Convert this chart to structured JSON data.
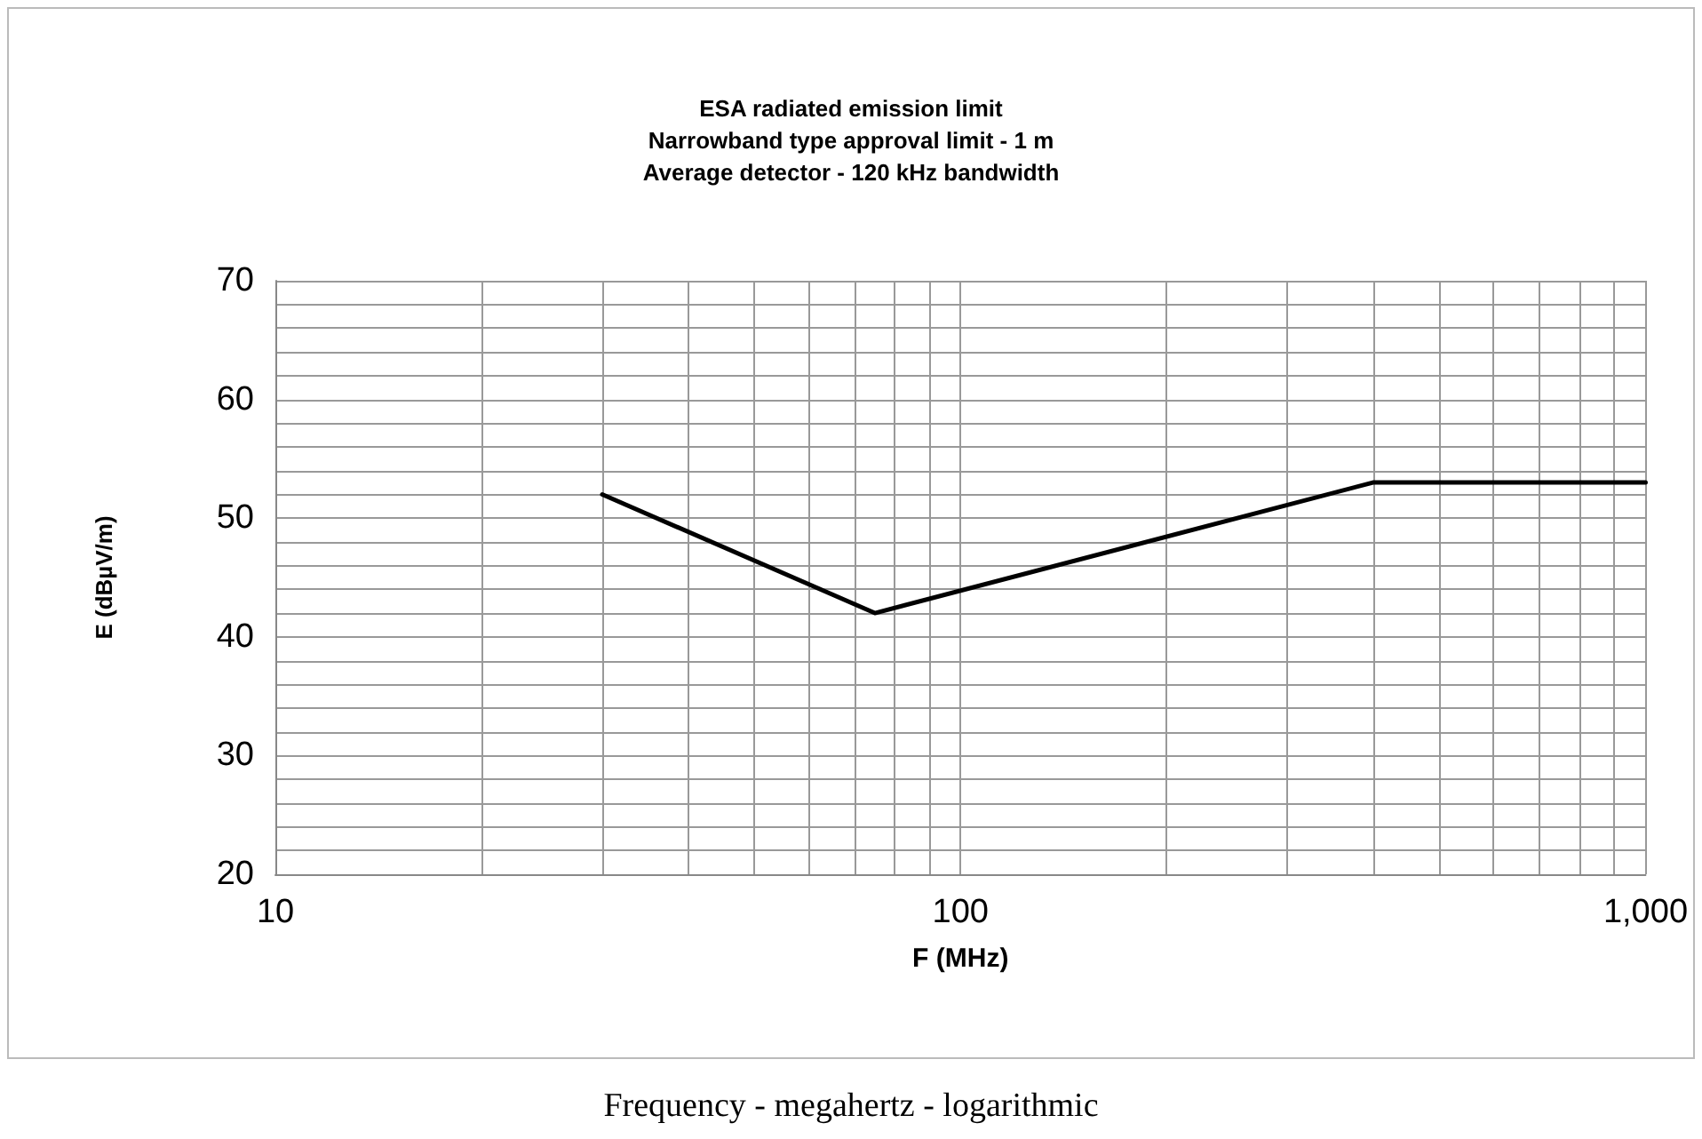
{
  "chart_data": {
    "type": "line",
    "title": "ESA radiated emission limit\nNarrowband type approval limit - 1 m\nAverage detector - 120 kHz bandwidth",
    "xlabel": "F (MHz)",
    "ylabel": "E (dBµV/m)",
    "annotations": [
      "Frequency - megahertz - logarithmic"
    ],
    "x": [
      30,
      75,
      400,
      1000
    ],
    "series": [
      {
        "color": "#000000",
        "values": [
          52,
          42,
          53,
          53
        ]
      }
    ],
    "log": "x",
    "grid": true,
    "marker": "none",
    "line_style": "solid",
    "xlim": [
      10,
      1000
    ],
    "xticks": [
      10,
      {
        "value": 20,
        "label": null
      },
      {
        "value": 30,
        "label": null
      },
      {
        "value": 40,
        "label": null
      },
      {
        "value": 50,
        "label": null
      },
      {
        "value": 60,
        "label": null
      },
      {
        "value": 70,
        "label": null
      },
      {
        "value": 80,
        "label": null
      },
      {
        "value": 90,
        "label": null
      },
      100,
      {
        "value": 200,
        "label": null
      },
      {
        "value": 300,
        "label": null
      },
      {
        "value": 400,
        "label": null
      },
      {
        "value": 500,
        "label": null
      },
      {
        "value": 600,
        "label": null
      },
      {
        "value": 700,
        "label": null
      },
      {
        "value": 800,
        "label": null
      },
      {
        "value": 900,
        "label": null
      },
      {
        "value": 1000,
        "label": "1,000"
      }
    ],
    "ylim": [
      20,
      70
    ],
    "yticks": [
      20,
      {
        "value": 22,
        "label": null
      },
      {
        "value": 24,
        "label": null
      },
      {
        "value": 26,
        "label": null
      },
      {
        "value": 28,
        "label": null
      },
      30,
      {
        "value": 32,
        "label": null
      },
      {
        "value": 34,
        "label": null
      },
      {
        "value": 36,
        "label": null
      },
      {
        "value": 38,
        "label": null
      },
      40,
      {
        "value": 42,
        "label": null
      },
      {
        "value": 44,
        "label": null
      },
      {
        "value": 46,
        "label": null
      },
      {
        "value": 48,
        "label": null
      },
      50,
      {
        "value": 52,
        "label": null
      },
      {
        "value": 54,
        "label": null
      },
      {
        "value": 56,
        "label": null
      },
      {
        "value": 58,
        "label": null
      },
      60,
      {
        "value": 62,
        "label": null
      },
      {
        "value": 64,
        "label": null
      },
      {
        "value": 66,
        "label": null
      },
      {
        "value": 68,
        "label": null
      },
      70
    ]
  }
}
